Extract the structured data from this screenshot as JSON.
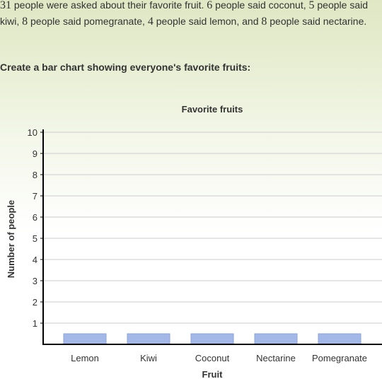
{
  "problem": {
    "total": "31",
    "text_1": " people were asked about their favorite fruit. ",
    "n_coconut": "6",
    "text_2": " people said coconut, ",
    "n_kiwi": "5",
    "text_3": " people said kiwi, ",
    "n_pomegranate": "8",
    "text_4": " people said pomegranate, ",
    "n_lemon": "4",
    "text_5": " people said lemon, and ",
    "n_nectarine": "8",
    "text_6": " people said nectarine."
  },
  "prompt": "Create a bar chart showing everyone's favorite fruits:",
  "chart_data": {
    "type": "bar",
    "title": "Favorite fruits",
    "xlabel": "Fruit",
    "ylabel": "Number of people",
    "categories": [
      "Lemon",
      "Kiwi",
      "Coconut",
      "Nectarine",
      "Pomegranate"
    ],
    "values": [
      0.5,
      0.5,
      0.5,
      0.5,
      0.5
    ],
    "ylim": [
      0,
      10
    ],
    "yticks": [
      1,
      2,
      3,
      4,
      5,
      6,
      7,
      8,
      9,
      10
    ],
    "grid": true,
    "bar_color": "#a4b8e8",
    "bar_edge_color": "#8aa2de",
    "grid_color": "#cccccc"
  }
}
